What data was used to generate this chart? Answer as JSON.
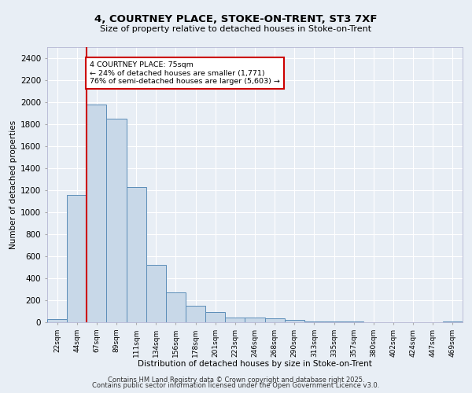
{
  "title1": "4, COURTNEY PLACE, STOKE-ON-TRENT, ST3 7XF",
  "title2": "Size of property relative to detached houses in Stoke-on-Trent",
  "xlabel": "Distribution of detached houses by size in Stoke-on-Trent",
  "ylabel": "Number of detached properties",
  "categories": [
    "22sqm",
    "44sqm",
    "67sqm",
    "89sqm",
    "111sqm",
    "134sqm",
    "156sqm",
    "178sqm",
    "201sqm",
    "223sqm",
    "246sqm",
    "268sqm",
    "290sqm",
    "313sqm",
    "335sqm",
    "357sqm",
    "380sqm",
    "402sqm",
    "424sqm",
    "447sqm",
    "469sqm"
  ],
  "values": [
    30,
    1160,
    1980,
    1850,
    1230,
    520,
    270,
    150,
    90,
    45,
    40,
    35,
    20,
    10,
    5,
    5,
    3,
    3,
    2,
    2,
    5
  ],
  "bar_color": "#c8d8e8",
  "bar_edge_color": "#5b8db8",
  "red_line_index": 1.5,
  "annotation_text": "4 COURTNEY PLACE: 75sqm\n← 24% of detached houses are smaller (1,771)\n76% of semi-detached houses are larger (5,603) →",
  "annotation_box_color": "#ffffff",
  "annotation_box_edge": "#cc0000",
  "red_line_color": "#cc0000",
  "ylim": [
    0,
    2500
  ],
  "yticks": [
    0,
    200,
    400,
    600,
    800,
    1000,
    1200,
    1400,
    1600,
    1800,
    2000,
    2200,
    2400
  ],
  "bg_color": "#e8eef5",
  "grid_color": "#ffffff",
  "footer1": "Contains HM Land Registry data © Crown copyright and database right 2025.",
  "footer2": "Contains public sector information licensed under the Open Government Licence v3.0."
}
